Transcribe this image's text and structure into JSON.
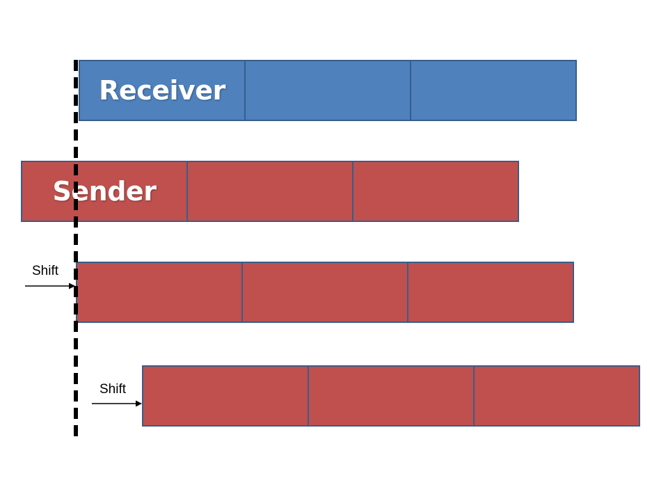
{
  "diagram": {
    "receiver": {
      "label": "Receiver",
      "color": "#4f81bd"
    },
    "sender": {
      "label": "Sender",
      "color": "#c0504d"
    },
    "shift_1": {
      "label": "Shift"
    },
    "shift_2": {
      "label": "Shift"
    },
    "border_color": "#385d8a",
    "alignment_line": "dashed"
  }
}
